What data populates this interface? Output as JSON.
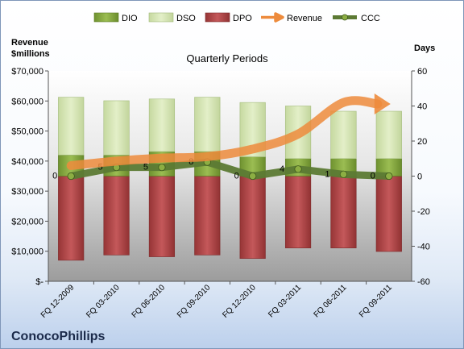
{
  "company": "ConocoPhillips",
  "chart_data": {
    "type": "bar",
    "title": "Quarterly Periods",
    "left_axis_title": [
      "Revenue",
      "$millions"
    ],
    "right_axis_title": "Days",
    "categories": [
      "FQ 12-2009",
      "FQ 03-2010",
      "FQ 06-2010",
      "FQ 09-2010",
      "FQ 12-2010",
      "FQ 03-2011",
      "FQ 06-2011",
      "FQ 09-2011"
    ],
    "left_axis": {
      "min": 0,
      "max": 70000,
      "step": 10000,
      "tick_labels": [
        "$-",
        "$10,000",
        "$20,000",
        "$30,000",
        "$40,000",
        "$50,000",
        "$60,000",
        "$70,000"
      ]
    },
    "right_axis": {
      "min": -60,
      "max": 60,
      "step": 20,
      "tick_labels": [
        "-60",
        "-40",
        "-20",
        "0",
        "20",
        "40",
        "60"
      ]
    },
    "series": [
      {
        "name": "DIO",
        "axis": "right",
        "color": "#8cae43",
        "values": [
          12,
          12,
          14,
          14,
          11,
          10,
          10,
          10
        ]
      },
      {
        "name": "DSO",
        "axis": "right",
        "color": "#d4e5b1",
        "values": [
          33,
          31,
          30,
          31,
          31,
          30,
          27,
          27
        ]
      },
      {
        "name": "DPO",
        "axis": "right",
        "color": "#b3484a",
        "values": [
          -48,
          -45,
          -46,
          -45,
          -47,
          -41,
          -41,
          -43
        ]
      },
      {
        "name": "Revenue",
        "axis": "left",
        "color": "#ed8b3c",
        "values": [
          38500,
          40000,
          41000,
          41500,
          44000,
          49000,
          59500,
          59000
        ]
      },
      {
        "name": "CCC",
        "axis": "right",
        "color": "#5c7a34",
        "values": [
          0,
          5,
          5,
          8,
          0,
          4,
          1,
          0
        ]
      }
    ],
    "ccc_labels": [
      "0",
      "5",
      "5",
      "8",
      "0",
      "4",
      "1",
      "0"
    ],
    "legend_position": "top",
    "grid": false
  }
}
